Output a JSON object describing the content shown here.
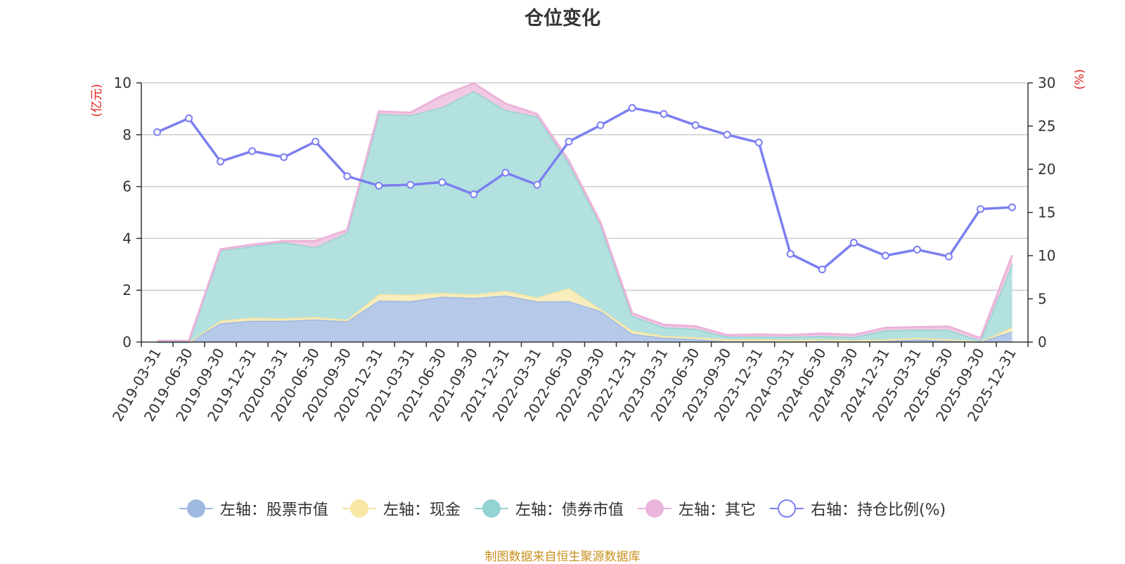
{
  "chart_data": {
    "type": "area",
    "title": "仓位变化",
    "left_axis_unit": "(亿元)",
    "right_axis_unit": "(%)",
    "ylim_left": [
      0,
      10
    ],
    "ylim_right": [
      0,
      30
    ],
    "yticks_left": [
      "0",
      "2",
      "4",
      "6",
      "8",
      "10"
    ],
    "yticks_right": [
      "0",
      "5",
      "10",
      "15",
      "20",
      "25",
      "30"
    ],
    "categories": [
      "2019-03-31",
      "2019-06-30",
      "2019-09-30",
      "2019-12-31",
      "2020-03-31",
      "2020-06-30",
      "2020-09-30",
      "2020-12-31",
      "2021-03-31",
      "2021-06-30",
      "2021-09-30",
      "2021-12-31",
      "2022-03-31",
      "2022-06-30",
      "2022-09-30",
      "2022-12-31",
      "2023-03-31",
      "2023-06-30",
      "2023-09-30",
      "2023-12-31",
      "2024-03-31",
      "2024-06-30",
      "2024-09-30",
      "2024-12-31",
      "2025-03-31",
      "2025-06-30",
      "2025-09-30",
      "2025-12-31"
    ],
    "series": [
      {
        "name": "左轴：股票市值",
        "axis": "left",
        "kind": "stacked-area",
        "color": "#9fb9e0",
        "fill": "#b6c9e9",
        "values": [
          0.0,
          0.0,
          0.73,
          0.82,
          0.82,
          0.87,
          0.8,
          1.6,
          1.58,
          1.75,
          1.7,
          1.8,
          1.57,
          1.58,
          1.2,
          0.32,
          0.17,
          0.11,
          0.03,
          0.03,
          0.02,
          0.04,
          0.02,
          0.04,
          0.1,
          0.05,
          0.01,
          0.41
        ]
      },
      {
        "name": "左轴：现金",
        "axis": "left",
        "kind": "stacked-area",
        "color": "#f5e3a0",
        "fill": "#f7edbd",
        "values": [
          0.0,
          0.0,
          0.1,
          0.12,
          0.1,
          0.1,
          0.06,
          0.25,
          0.25,
          0.15,
          0.14,
          0.18,
          0.15,
          0.5,
          0.08,
          0.12,
          0.07,
          0.08,
          0.07,
          0.08,
          0.06,
          0.06,
          0.05,
          0.06,
          0.07,
          0.06,
          0.01,
          0.16
        ]
      },
      {
        "name": "左轴：债券市值",
        "axis": "left",
        "kind": "stacked-area",
        "color": "#93d3d2",
        "fill": "#b3e1e0",
        "values": [
          0.0,
          0.0,
          2.7,
          2.76,
          2.93,
          2.68,
          3.36,
          6.95,
          6.92,
          7.16,
          7.84,
          6.97,
          6.98,
          4.82,
          3.24,
          0.57,
          0.33,
          0.32,
          0.11,
          0.1,
          0.12,
          0.13,
          0.12,
          0.35,
          0.31,
          0.36,
          0.03,
          2.43
        ]
      },
      {
        "name": "左轴：其它",
        "axis": "left",
        "kind": "stacked-area",
        "color": "#ebb4db",
        "fill": "#f0c9e4",
        "values": [
          0.05,
          0.05,
          0.05,
          0.06,
          0.05,
          0.25,
          0.1,
          0.1,
          0.1,
          0.45,
          0.3,
          0.25,
          0.1,
          0.1,
          0.1,
          0.1,
          0.1,
          0.1,
          0.06,
          0.08,
          0.07,
          0.1,
          0.09,
          0.1,
          0.1,
          0.13,
          0.1,
          0.35
        ]
      },
      {
        "name": "右轴：持仓比例(%)",
        "axis": "right",
        "kind": "line",
        "color": "#7b7ff0",
        "values": [
          24.3,
          25.9,
          20.9,
          22.1,
          21.4,
          23.2,
          19.2,
          18.1,
          18.2,
          18.5,
          17.1,
          19.6,
          18.2,
          23.2,
          25.1,
          27.1,
          26.4,
          25.1,
          24.0,
          23.1,
          10.2,
          8.4,
          11.5,
          10.0,
          10.7,
          9.9,
          15.4,
          15.6
        ]
      }
    ]
  },
  "legend": {
    "stock": "左轴：股票市值",
    "cash": "左轴：现金",
    "bond": "左轴：债券市值",
    "other": "左轴：其它",
    "ratio": "右轴：持仓比例(%)"
  },
  "colors": {
    "stock": "#9fb9e0",
    "cash": "#f5e3a0",
    "bond": "#93d3d2",
    "other": "#ebb4db",
    "ratio": "#7b7ff0",
    "unit_red": "#e0201c",
    "source": "#c8901e"
  },
  "footer": {
    "source": "制图数据来自恒生聚源数据库"
  }
}
